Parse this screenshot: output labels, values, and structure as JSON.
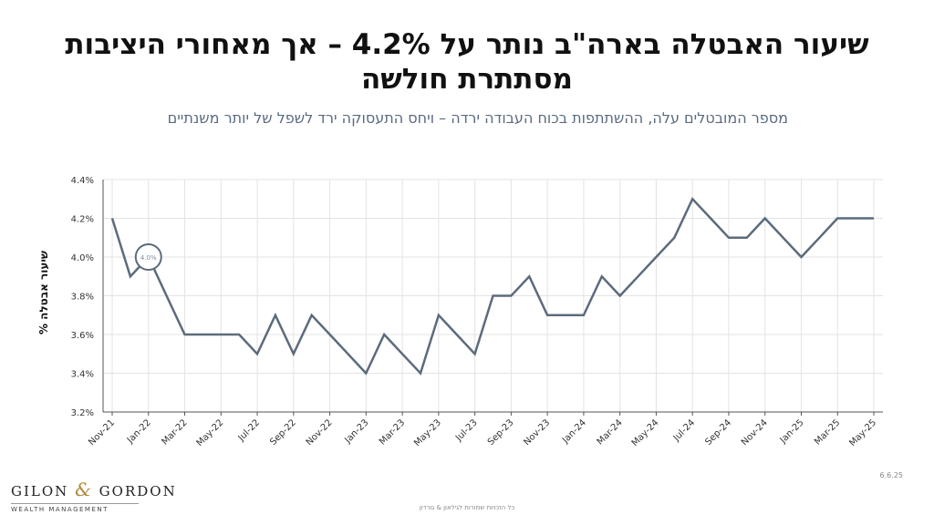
{
  "slide": {
    "title": "שיעור האבטלה בארה\"ב נותר על 4.2% – אך מאחורי היציבות מסתתרת חולשה",
    "subtitle": "מספר המובטלים עלה, ההשתתפות בכוח העבודה ירדה – ויחס התעסוקה ירד לשפל של יותר משנתיים",
    "date": "6.6.25",
    "footer": "כל הזכויות שמורות לגילאון & גורדון"
  },
  "logo": {
    "name_left": "GILON",
    "ampersand": "&",
    "name_right": "GORDON",
    "tagline": "WEALTH MANAGEMENT"
  },
  "colors": {
    "line": "#5c6b7c",
    "grid": "#e3e3e3",
    "axis": "#555555",
    "subtitle": "#5a6b80",
    "accent": "#b08a3a"
  },
  "chart_data": {
    "type": "line",
    "ylabel": "שיעור אבטלה %",
    "xlabel": "",
    "ylim": [
      3.2,
      4.4
    ],
    "yticks": [
      "3.2%",
      "3.4%",
      "3.6%",
      "3.8%",
      "4.0%",
      "4.2%",
      "4.4%"
    ],
    "grid": true,
    "x": [
      "Nov-21",
      "Dec-21",
      "Jan-22",
      "Feb-22",
      "Mar-22",
      "Apr-22",
      "May-22",
      "Jun-22",
      "Jul-22",
      "Aug-22",
      "Sep-22",
      "Oct-22",
      "Nov-22",
      "Dec-22",
      "Jan-23",
      "Feb-23",
      "Mar-23",
      "Apr-23",
      "May-23",
      "Jun-23",
      "Jul-23",
      "Aug-23",
      "Sep-23",
      "Oct-23",
      "Nov-23",
      "Dec-23",
      "Jan-24",
      "Feb-24",
      "Mar-24",
      "Apr-24",
      "May-24",
      "Jun-24",
      "Jul-24",
      "Aug-24",
      "Sep-24",
      "Oct-24",
      "Nov-24",
      "Dec-24",
      "Jan-25",
      "Feb-25",
      "Mar-25",
      "Apr-25",
      "May-25"
    ],
    "xtick_labels": [
      "Nov-21",
      "Jan-22",
      "Mar-22",
      "May-22",
      "Jul-22",
      "Sep-22",
      "Nov-22",
      "Jan-23",
      "Mar-23",
      "May-23",
      "Jul-23",
      "Sep-23",
      "Nov-23",
      "Jan-24",
      "Mar-24",
      "May-24",
      "Jul-24",
      "Sep-24",
      "Nov-24",
      "Jan-25",
      "Mar-25",
      "May-25"
    ],
    "series": [
      {
        "values": [
          4.2,
          3.9,
          4.0,
          3.8,
          3.6,
          3.6,
          3.6,
          3.6,
          3.5,
          3.7,
          3.5,
          3.7,
          3.6,
          3.5,
          3.4,
          3.6,
          3.5,
          3.4,
          3.7,
          3.6,
          3.5,
          3.8,
          3.8,
          3.9,
          3.7,
          3.7,
          3.7,
          3.9,
          3.8,
          3.9,
          4.0,
          4.1,
          4.3,
          4.2,
          4.1,
          4.1,
          4.2,
          4.1,
          4.0,
          4.1,
          4.2,
          4.2,
          4.2
        ]
      }
    ],
    "annotation": {
      "x": "Jan-22",
      "text": "4.0%"
    }
  }
}
